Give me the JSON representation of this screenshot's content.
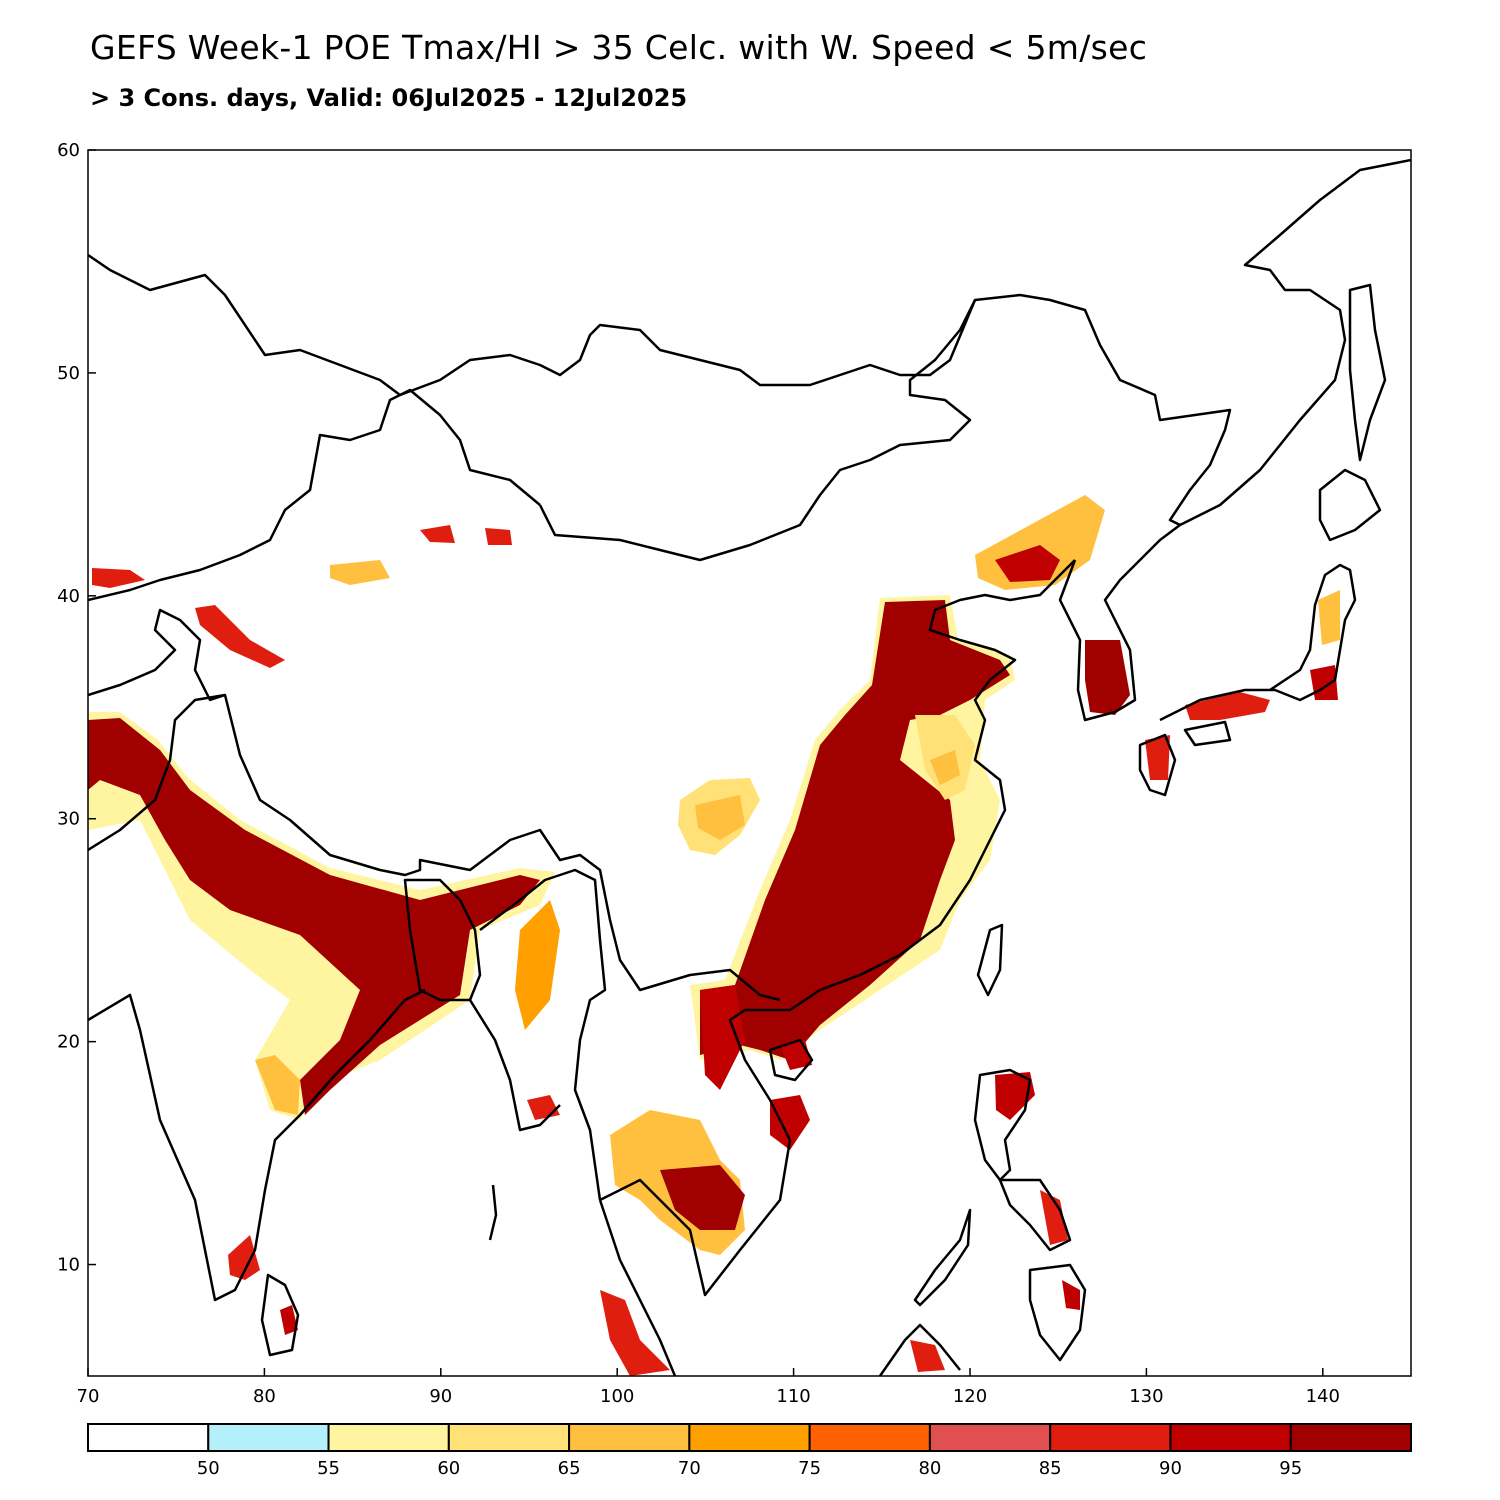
{
  "title": "GEFS Week-1 POE Tmax/HI > 35 Celc. with W. Speed < 5m/sec",
  "subtitle": "> 3 Cons. days, Valid: 06Jul2025 - 12Jul2025",
  "map": {
    "lon_range": [
      70,
      145
    ],
    "lat_range": [
      5,
      60
    ],
    "x_ticks": [
      "70",
      "80",
      "90",
      "100",
      "110",
      "120",
      "130",
      "140"
    ],
    "y_ticks": [
      "10",
      "20",
      "30",
      "40",
      "50",
      "60"
    ],
    "colors": {
      "lt50": "#ffffff",
      "p50": "#b4f0fa",
      "p55": "#fff5a0",
      "p60": "#ffe178",
      "p65": "#ffc040",
      "p70": "#ffa000",
      "p75": "#ff6000",
      "p80": "#e15050",
      "p85": "#e01e10",
      "p90": "#c00000",
      "p95": "#a00000"
    }
  },
  "colorbar": {
    "colors": [
      "#ffffff",
      "#b4f0fa",
      "#fff5a0",
      "#ffe178",
      "#ffc040",
      "#ffa000",
      "#ff6000",
      "#e15050",
      "#e01e10",
      "#c00000",
      "#a00000"
    ],
    "labels": [
      "50",
      "55",
      "60",
      "65",
      "70",
      "75",
      "80",
      "85",
      "90",
      "95"
    ]
  }
}
